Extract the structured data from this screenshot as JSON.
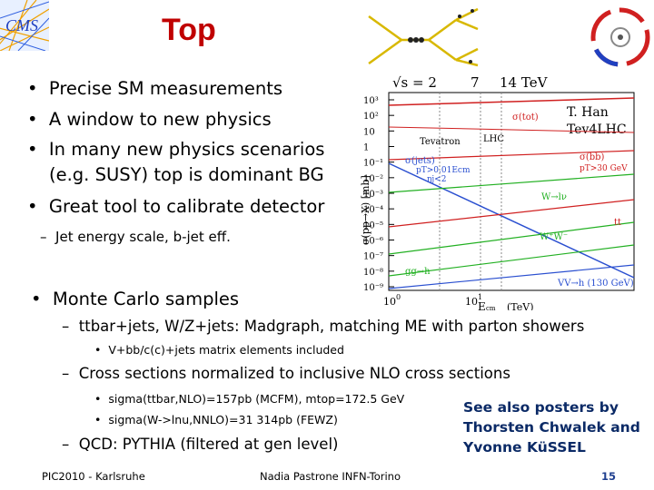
{
  "slide": {
    "title": "Top",
    "bullets": [
      "Precise SM measurements",
      "A window to new physics",
      "In many new physics scenarios",
      "(e.g. SUSY) top is dominant BG",
      "Great tool to calibrate detector"
    ],
    "sub_bullet": "Jet energy scale, b-jet eff.",
    "mc_heading": "Monte Carlo samples",
    "mc_items": [
      "ttbar+jets, W/Z+jets: Madgraph, matching ME with parton showers",
      "V+bb/c(c)+jets matrix elements included",
      "Cross sections normalized to inclusive NLO cross sections",
      "sigma(ttbar,NLO)=157pb (MCFM), mtop=172.5 GeV",
      "sigma(W->lnu,NNLO)=31 314pb (FEWZ)",
      "QCD: PYTHIA (filtered at gen level)"
    ],
    "note": "See also posters by Thorsten Chwalek and Yvonne KüSSEL",
    "footer": {
      "left": "PIC2010 - Karlsruhe",
      "center": "Nadia Pastrone INFN-Torino",
      "page": "15"
    }
  },
  "plot": {
    "energies": [
      "√s = 2",
      "7",
      "14 TeV"
    ],
    "credit": [
      "T. Han",
      "Tev4LHC"
    ],
    "ylabel": "σ(pp→X) [mb]",
    "xlabel": "E",
    "xlabel_sub": "cm",
    "xunit": "(TeV)",
    "xticks": [
      "10",
      "0",
      "10",
      "1"
    ],
    "yticks": [
      "10³",
      "10²",
      "10",
      "1",
      "10⁻¹",
      "10⁻²",
      "10⁻³",
      "10⁻⁴",
      "10⁻⁵",
      "10⁻⁶",
      "10⁻⁷",
      "10⁻⁸",
      "10⁻⁹"
    ],
    "labels": {
      "tevatron": "Tevatron",
      "lhc": "LHC",
      "sigma_tot": "σ(tot)",
      "sigma_jets": "σ(jets)",
      "pt_cut": "pT>0.01Ecm",
      "eta_cut": "ηj<2",
      "sigma_bb": "σ(bb)",
      "bb_cut": "pT>30 GeV",
      "w_lnu": "W→lν",
      "tt": "tt",
      "ww": "W⁺W⁻",
      "ggh": "gg→h",
      "vvh": "VV→h (130 GeV)"
    },
    "colors": {
      "tot": "#d02020",
      "jets": "#2a4fd0",
      "bb": "#d02020",
      "w": "#22b022",
      "tt": "#d02020",
      "ww": "#22b022",
      "ggh": "#22b022",
      "vvh": "#2a4fd0"
    }
  }
}
